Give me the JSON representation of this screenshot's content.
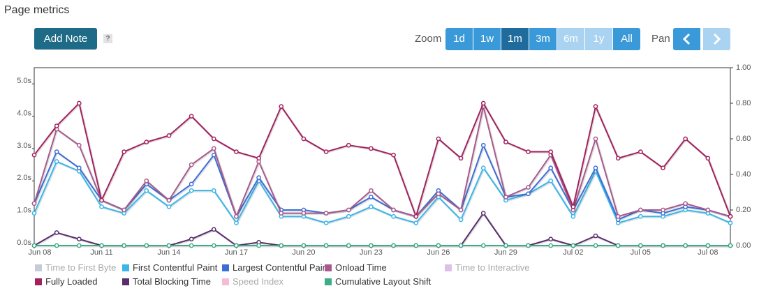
{
  "header": {
    "title": "Page metrics"
  },
  "toolbar": {
    "add_note": "Add Note",
    "help": "?",
    "zoom_label": "Zoom",
    "zoom_buttons": [
      {
        "label": "1d",
        "state": "normal"
      },
      {
        "label": "1w",
        "state": "normal"
      },
      {
        "label": "1m",
        "state": "active"
      },
      {
        "label": "3m",
        "state": "normal"
      },
      {
        "label": "6m",
        "state": "disabled"
      },
      {
        "label": "1y",
        "state": "disabled"
      },
      {
        "label": "All",
        "state": "normal"
      }
    ],
    "pan_label": "Pan"
  },
  "chart_data": {
    "type": "line",
    "categories": [
      "Jun 08",
      null,
      null,
      "Jun 11",
      null,
      null,
      "Jun 14",
      null,
      null,
      "Jun 17",
      null,
      null,
      "Jun 20",
      null,
      null,
      "Jun 23",
      null,
      null,
      "Jun 26",
      null,
      null,
      "Jun 29",
      null,
      null,
      "Jul 02",
      null,
      null,
      "Jul 05",
      null,
      null,
      "Jul 08",
      null
    ],
    "ylim": [
      0,
      5.5
    ],
    "yticks": [
      {
        "value": 0,
        "label": "0.0s"
      },
      {
        "value": 1,
        "label": "1.0s"
      },
      {
        "value": 2,
        "label": "2.0s"
      },
      {
        "value": 3,
        "label": "3.0s"
      },
      {
        "value": 4,
        "label": "4.0s"
      },
      {
        "value": 5,
        "label": "5.0s"
      }
    ],
    "y2lim": [
      0,
      1
    ],
    "y2ticks": [
      {
        "value": 0,
        "label": "0.00"
      },
      {
        "value": 0.2,
        "label": "0.20"
      },
      {
        "value": 0.4,
        "label": "0.40"
      },
      {
        "value": 0.6,
        "label": "0.60"
      },
      {
        "value": 0.8,
        "label": "0.80"
      },
      {
        "value": 1,
        "label": "1.00"
      }
    ],
    "grid": false,
    "legend": "bottom",
    "series": [
      {
        "name": "Time to First Byte",
        "color": "#c5ccd8",
        "visible": false
      },
      {
        "name": "First Contentful Paint",
        "color": "#3ab6ea",
        "visible": true,
        "values": [
          1.0,
          2.6,
          2.3,
          1.2,
          1.0,
          1.7,
          1.2,
          1.7,
          1.7,
          0.7,
          2.0,
          0.9,
          0.9,
          0.7,
          0.9,
          1.2,
          0.9,
          0.7,
          1.5,
          0.8,
          2.4,
          1.4,
          1.6,
          2.0,
          0.9,
          2.3,
          0.7,
          0.9,
          0.9,
          1.1,
          1.0,
          0.7
        ]
      },
      {
        "name": "Largest Contentful Paint",
        "color": "#3c6fd6",
        "visible": true,
        "values": [
          1.3,
          2.9,
          2.4,
          1.4,
          1.1,
          1.9,
          1.4,
          1.9,
          2.8,
          0.9,
          2.1,
          1.1,
          1.1,
          1.0,
          1.1,
          1.5,
          1.1,
          0.9,
          1.7,
          1.1,
          3.1,
          1.5,
          1.6,
          2.4,
          1.1,
          2.4,
          0.8,
          1.1,
          1.0,
          1.2,
          1.1,
          0.9
        ]
      },
      {
        "name": "Onload Time",
        "color": "#a85a8c",
        "visible": true,
        "values": [
          1.3,
          3.6,
          3.1,
          1.4,
          1.1,
          2.0,
          1.4,
          2.5,
          3.0,
          0.9,
          2.6,
          1.0,
          1.0,
          1.0,
          1.1,
          1.7,
          1.1,
          0.9,
          1.6,
          1.1,
          4.3,
          1.5,
          1.8,
          2.8,
          1.1,
          3.3,
          0.9,
          1.1,
          1.1,
          1.3,
          1.1,
          0.9
        ]
      },
      {
        "name": "Time to Interactive",
        "color": "#dcc0ea",
        "visible": false
      },
      {
        "name": "Fully Loaded",
        "color": "#a3215e",
        "visible": true,
        "values": [
          2.8,
          3.7,
          4.4,
          1.4,
          2.9,
          3.2,
          3.4,
          4.0,
          3.3,
          2.9,
          2.7,
          4.3,
          3.3,
          2.9,
          3.1,
          3.0,
          2.8,
          0.9,
          3.3,
          2.7,
          4.4,
          3.2,
          2.9,
          2.9,
          1.2,
          4.3,
          2.7,
          2.9,
          2.4,
          3.3,
          2.7,
          0.9
        ]
      },
      {
        "name": "Total Blocking Time",
        "color": "#5a2d6e",
        "visible": true,
        "values": [
          0,
          0.4,
          0.2,
          0,
          0,
          0,
          0,
          0.2,
          0.5,
          0,
          0.1,
          0,
          0,
          0,
          0,
          0,
          0,
          0,
          0,
          0,
          1.0,
          0,
          0,
          0.2,
          0,
          0.3,
          0,
          0,
          0,
          0,
          0,
          0
        ]
      },
      {
        "name": "Speed Index",
        "color": "#f5bcd8",
        "visible": false
      },
      {
        "name": "Cumulative Layout Shift",
        "color": "#3cad84",
        "visible": true,
        "axis": "y2",
        "values": [
          0,
          0,
          0,
          0,
          0,
          0,
          0,
          0,
          0,
          0,
          0,
          0,
          0,
          0,
          0,
          0,
          0,
          0,
          0,
          0,
          0,
          0,
          0,
          0,
          0,
          0,
          0,
          0,
          0,
          0,
          0,
          0
        ]
      }
    ]
  }
}
